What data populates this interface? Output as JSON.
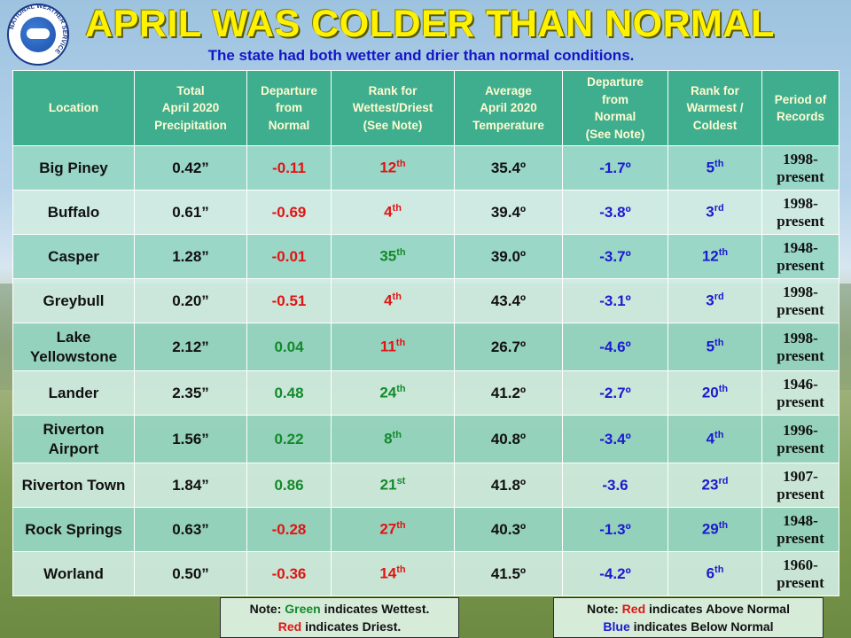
{
  "logo": {
    "text": "NATIONAL WEATHER SERVICE"
  },
  "title": "APRIL WAS COLDER THAN NORMAL",
  "subtitle": "The state had both wetter and drier than normal conditions.",
  "colors": {
    "title": "#fff200",
    "subtitle": "#1515c8",
    "header_bg": "#3fae8f",
    "red": "#e01414",
    "green": "#138a2c",
    "blue": "#1a1ad0"
  },
  "headers": {
    "location": "Location",
    "precip": [
      "Total",
      "April 2020",
      "Precipitation"
    ],
    "precip_dep": [
      "Departure",
      "from",
      "Normal"
    ],
    "precip_rank": [
      "Rank for",
      "Wettest/Driest",
      "(See Note)"
    ],
    "temp": [
      "Average",
      "April 2020",
      "Temperature"
    ],
    "temp_dep": [
      "Departure",
      "from",
      "Normal",
      "(See Note)"
    ],
    "temp_rank": [
      "Rank for",
      "Warmest /",
      "Coldest"
    ],
    "period": [
      "Period of",
      "Records"
    ]
  },
  "rows": [
    {
      "loc": [
        "Big Piney"
      ],
      "precip": "0.42”",
      "dep": "-0.11",
      "dep_color": "red",
      "rank": "12",
      "rank_sup": "th",
      "rank_color": "red",
      "temp": "35.4º",
      "tdep": "-1.7º",
      "trank": "5",
      "trank_sup": "th",
      "period": [
        "1998-",
        "present"
      ]
    },
    {
      "loc": [
        "Buffalo"
      ],
      "precip": "0.61”",
      "dep": "-0.69",
      "dep_color": "red",
      "rank": "4",
      "rank_sup": "th",
      "rank_color": "red",
      "temp": "39.4º",
      "tdep": "-3.8º",
      "trank": "3",
      "trank_sup": "rd",
      "period": [
        "1998-",
        "present"
      ]
    },
    {
      "loc": [
        "Casper"
      ],
      "precip": "1.28”",
      "dep": "-0.01",
      "dep_color": "red",
      "rank": "35",
      "rank_sup": "th",
      "rank_color": "green",
      "temp": "39.0º",
      "tdep": "-3.7º",
      "trank": "12",
      "trank_sup": "th",
      "period": [
        "1948-",
        "present"
      ]
    },
    {
      "loc": [
        "Greybull"
      ],
      "precip": "0.20”",
      "dep": "-0.51",
      "dep_color": "red",
      "rank": "4",
      "rank_sup": "th",
      "rank_color": "red",
      "temp": "43.4º",
      "tdep": "-3.1º",
      "trank": "3",
      "trank_sup": "rd",
      "period": [
        "1998-",
        "present"
      ]
    },
    {
      "loc": [
        "Lake",
        "Yellowstone"
      ],
      "precip": "2.12”",
      "dep": "0.04",
      "dep_color": "green",
      "rank": "11",
      "rank_sup": "th",
      "rank_color": "red",
      "temp": "26.7º",
      "tdep": "-4.6º",
      "trank": "5",
      "trank_sup": "th",
      "period": [
        "1998-",
        "present"
      ]
    },
    {
      "loc": [
        "Lander"
      ],
      "precip": "2.35”",
      "dep": "0.48",
      "dep_color": "green",
      "rank": "24",
      "rank_sup": "th",
      "rank_color": "green",
      "temp": "41.2º",
      "tdep": "-2.7º",
      "trank": "20",
      "trank_sup": "th",
      "period": [
        "1946-",
        "present"
      ]
    },
    {
      "loc": [
        "Riverton",
        "Airport"
      ],
      "precip": "1.56”",
      "dep": "0.22",
      "dep_color": "green",
      "rank": "8",
      "rank_sup": "th",
      "rank_color": "green",
      "temp": "40.8º",
      "tdep": "-3.4º",
      "trank": "4",
      "trank_sup": "th",
      "period": [
        "1996-",
        "present"
      ]
    },
    {
      "loc": [
        "Riverton Town"
      ],
      "precip": "1.84”",
      "dep": "0.86",
      "dep_color": "green",
      "rank": "21",
      "rank_sup": "st",
      "rank_color": "green",
      "temp": "41.8º",
      "tdep": "-3.6",
      "trank": "23",
      "trank_sup": "rd",
      "period": [
        "1907-",
        "present"
      ]
    },
    {
      "loc": [
        "Rock Springs"
      ],
      "precip": "0.63”",
      "dep": "-0.28",
      "dep_color": "red",
      "rank": "27",
      "rank_sup": "th",
      "rank_color": "red",
      "temp": "40.3º",
      "tdep": "-1.3º",
      "trank": "29",
      "trank_sup": "th",
      "period": [
        "1948-",
        "present"
      ]
    },
    {
      "loc": [
        "Worland"
      ],
      "precip": "0.50”",
      "dep": "-0.36",
      "dep_color": "red",
      "rank": "14",
      "rank_sup": "th",
      "rank_color": "red",
      "temp": "41.5º",
      "tdep": "-4.2º",
      "trank": "6",
      "trank_sup": "th",
      "period": [
        "1960-",
        "present"
      ]
    }
  ],
  "note_left": {
    "prefix": "Note: ",
    "green_word": "Green",
    "line1_rest": " indicates Wettest.",
    "red_word": "Red",
    "line2_rest": " indicates Driest."
  },
  "note_right": {
    "prefix": "Note: ",
    "red_word": "Red",
    "line1_rest": " indicates Above Normal",
    "blue_word": "Blue",
    "line2_rest": " indicates Below Normal"
  }
}
